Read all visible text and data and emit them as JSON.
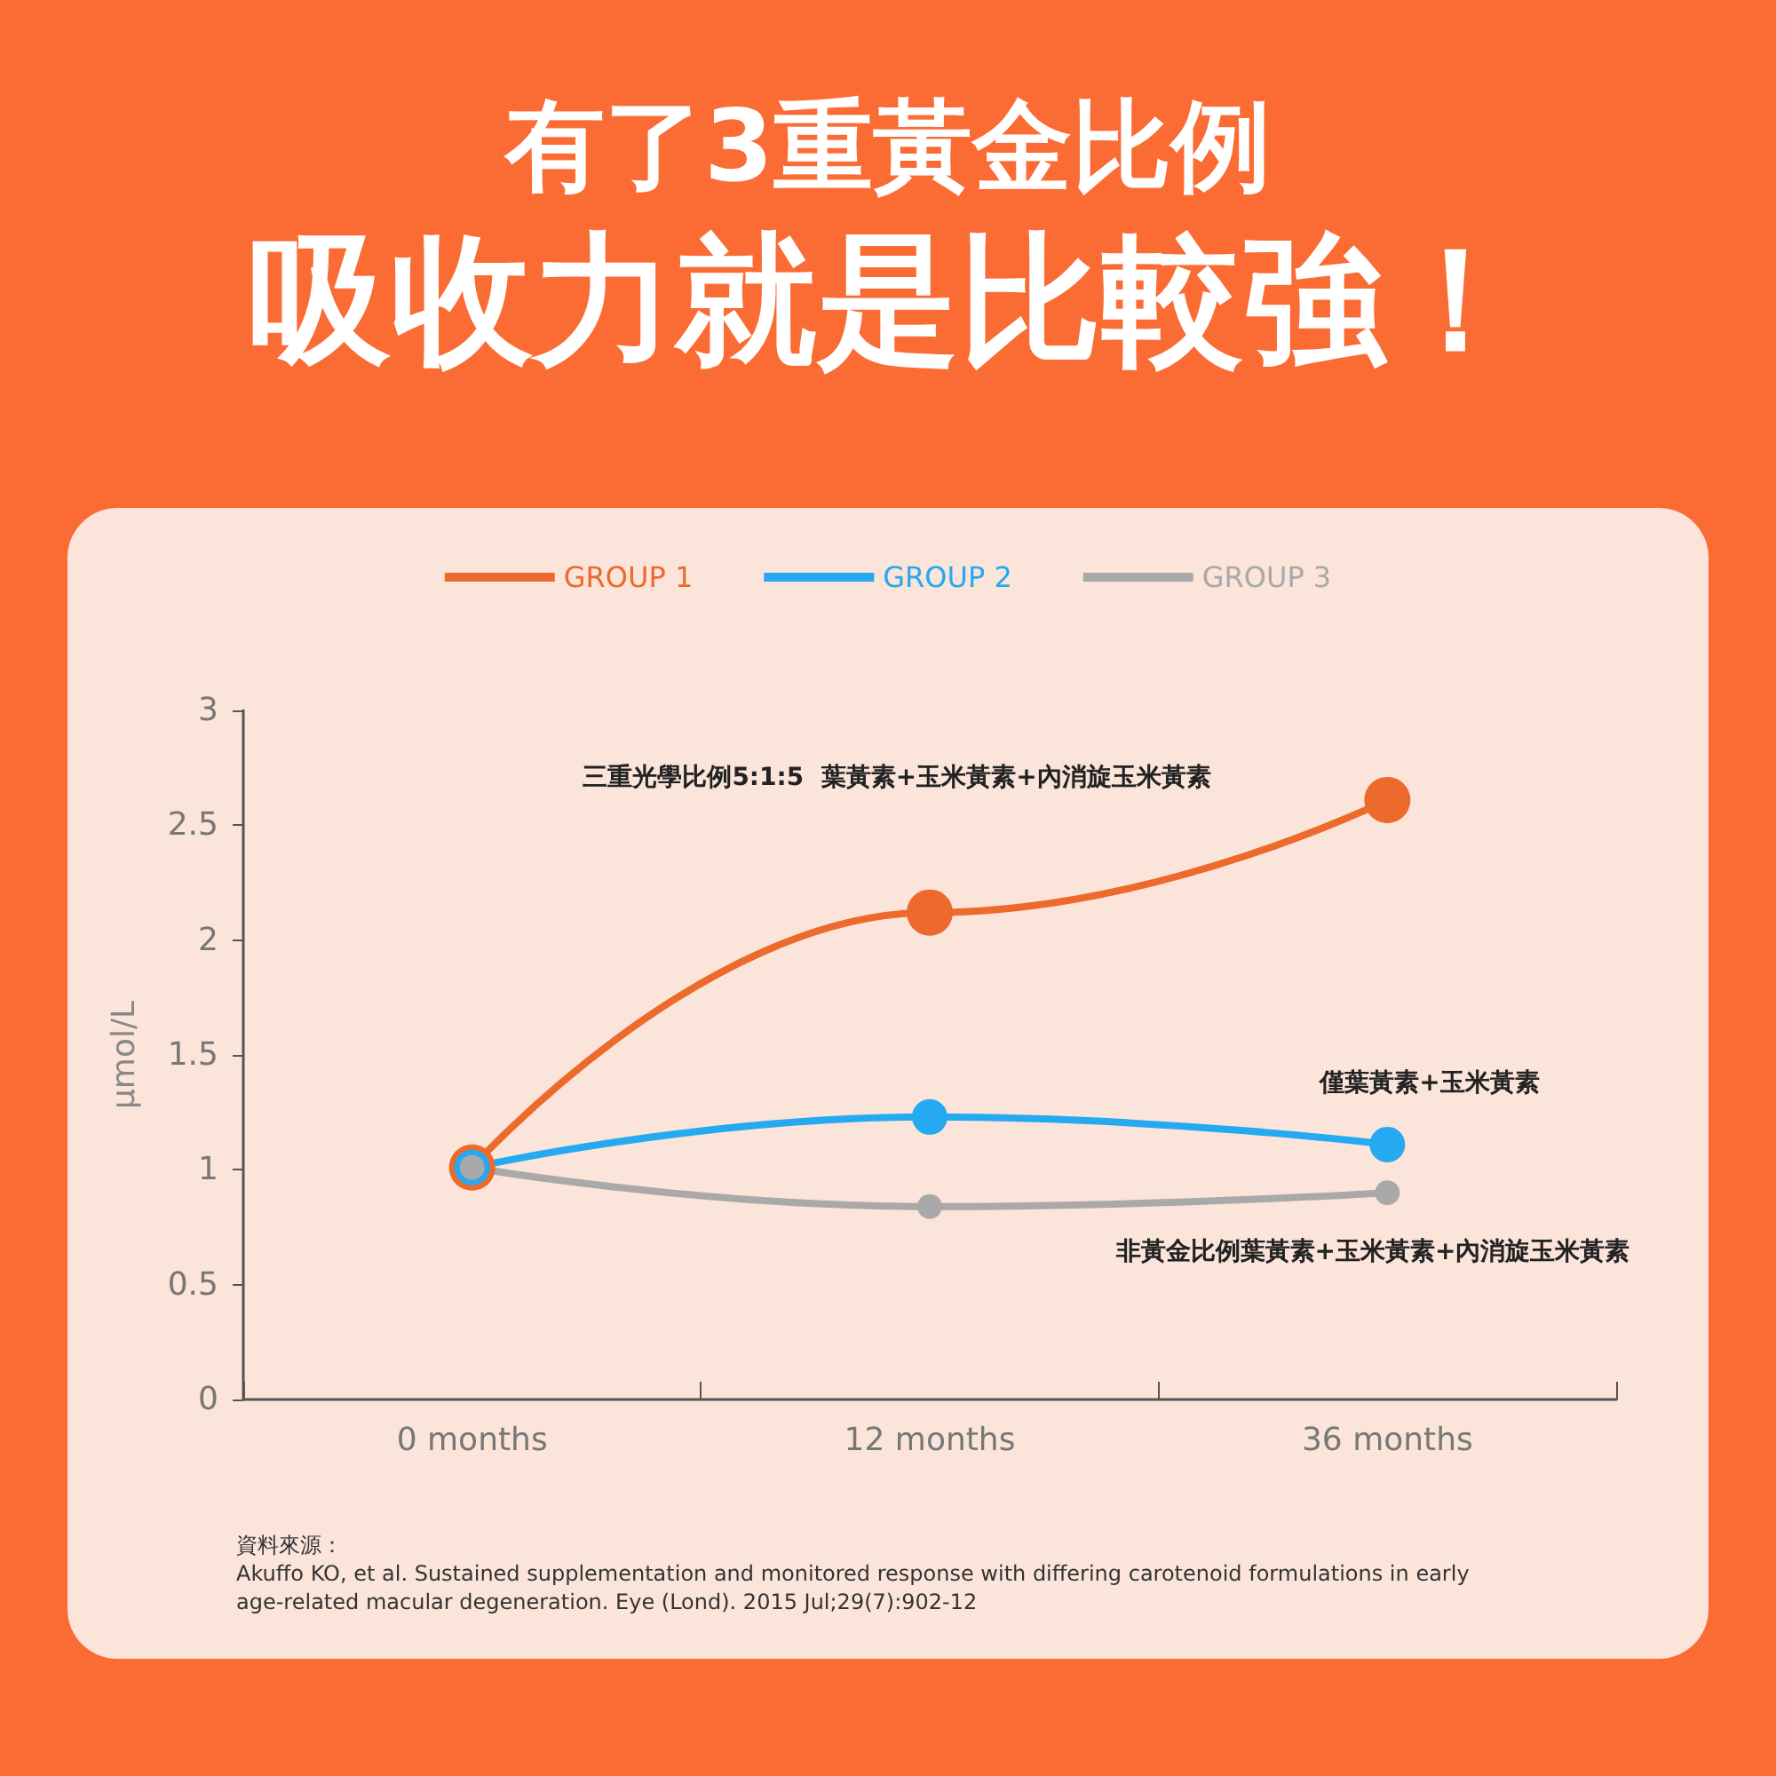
{
  "chart_data": {
    "type": "line",
    "title": "有了3重黃金比例",
    "subtitle": "吸收力就是比較強！",
    "ylabel": "μmol/L",
    "categories": [
      "0 months",
      "12 months",
      "36 months"
    ],
    "series": [
      {
        "name": "GROUP 1",
        "color": "#ec6a2c",
        "values": [
          1.01,
          2.12,
          2.61
        ]
      },
      {
        "name": "GROUP 2",
        "color": "#25a9f0",
        "values": [
          1.01,
          1.23,
          1.11
        ]
      },
      {
        "name": "GROUP 3",
        "color": "#a9a9a9",
        "values": [
          1.01,
          0.84,
          0.9
        ]
      }
    ],
    "ylim": [
      0,
      3
    ],
    "yticks": [
      0,
      0.5,
      1,
      1.5,
      2,
      2.5,
      3
    ],
    "grid": false,
    "legend": "top",
    "marker": "circle",
    "line_style": "solid",
    "annotations": [
      "三重光學比例5:1:5  葉黃素+玉米黃素+內消旋玉米黃素",
      "僅葉黃素+玉米黃素",
      "非黃金比例葉黃素+玉米黃素+內消旋玉米黃素",
      "資料來源：",
      "Akuffo KO, et al. Sustained supplementation and monitored response with differing carotenoid formulations in early age-related macular degeneration. Eye (Lond). 2015 Jul;29(7):902-12"
    ]
  }
}
